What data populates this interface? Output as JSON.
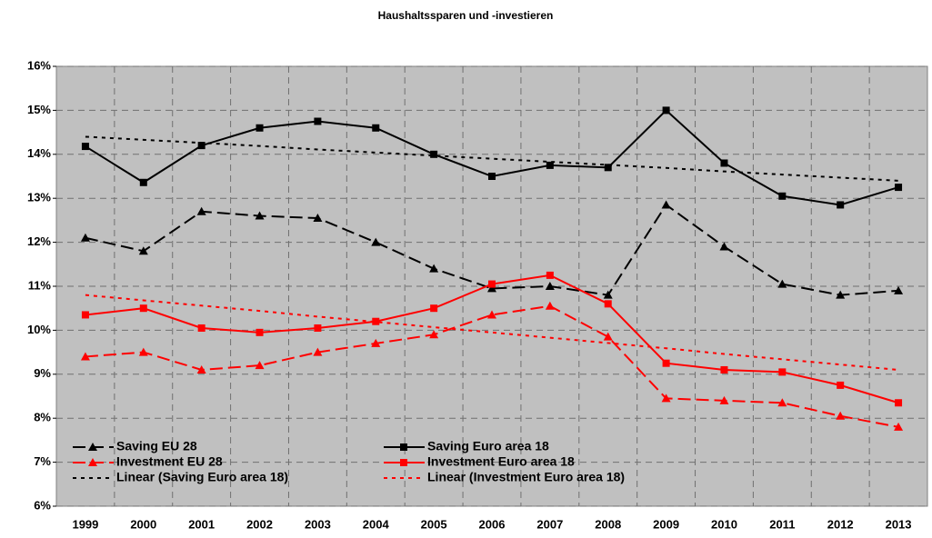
{
  "chart_data": {
    "type": "line",
    "title": "Haushaltssparen und -investieren",
    "categories": [
      "1999",
      "2000",
      "2001",
      "2002",
      "2003",
      "2004",
      "2005",
      "2006",
      "2007",
      "2008",
      "2009",
      "2010",
      "2011",
      "2012",
      "2013"
    ],
    "series": [
      {
        "name": "Saving EU 28",
        "color": "#000000",
        "dash": "dashed",
        "marker": "triangle",
        "values": [
          12.1,
          11.8,
          12.7,
          12.6,
          12.55,
          12.0,
          11.4,
          10.95,
          11.0,
          10.8,
          12.85,
          11.9,
          11.05,
          10.8,
          10.9
        ]
      },
      {
        "name": "Saving Euro area 18",
        "color": "#000000",
        "dash": "solid",
        "marker": "square",
        "values": [
          14.18,
          13.36,
          14.2,
          14.6,
          14.75,
          14.6,
          14.0,
          13.5,
          13.75,
          13.7,
          15.0,
          13.8,
          13.05,
          12.85,
          13.25
        ]
      },
      {
        "name": "Investment EU 28",
        "color": "#ff0000",
        "dash": "dashed",
        "marker": "triangle",
        "values": [
          9.4,
          9.5,
          9.1,
          9.2,
          9.5,
          9.7,
          9.9,
          10.35,
          10.55,
          9.85,
          8.45,
          8.4,
          8.35,
          8.05,
          7.8
        ]
      },
      {
        "name": "Investment Euro area 18",
        "color": "#ff0000",
        "dash": "solid",
        "marker": "square",
        "values": [
          10.35,
          10.5,
          10.05,
          9.95,
          10.05,
          10.2,
          10.5,
          11.05,
          11.25,
          10.6,
          9.25,
          9.1,
          9.05,
          8.75,
          8.35
        ]
      },
      {
        "name": "Linear (Saving Euro area 18)",
        "color": "#000000",
        "dash": "dotted",
        "marker": "none",
        "values": [
          14.4,
          14.33,
          14.26,
          14.19,
          14.11,
          14.04,
          13.97,
          13.9,
          13.83,
          13.76,
          13.69,
          13.61,
          13.54,
          13.47,
          13.4
        ]
      },
      {
        "name": "Linear (Investment Euro area 18)",
        "color": "#ff0000",
        "dash": "dotted",
        "marker": "none",
        "values": [
          10.8,
          10.68,
          10.56,
          10.44,
          10.31,
          10.19,
          10.07,
          9.95,
          9.83,
          9.71,
          9.59,
          9.46,
          9.34,
          9.22,
          9.1
        ]
      }
    ],
    "ylim": [
      6,
      16
    ],
    "yticks": [
      {
        "value": 6,
        "label": "6%"
      },
      {
        "value": 7,
        "label": "7%"
      },
      {
        "value": 8,
        "label": "8%"
      },
      {
        "value": 9,
        "label": "9%"
      },
      {
        "value": 10,
        "label": "10%"
      },
      {
        "value": 11,
        "label": "11%"
      },
      {
        "value": 12,
        "label": "12%"
      },
      {
        "value": 13,
        "label": "13%"
      },
      {
        "value": 14,
        "label": "14%"
      },
      {
        "value": 15,
        "label": "15%"
      },
      {
        "value": 16,
        "label": "16%"
      }
    ],
    "grid": true,
    "legend": "bottom-left",
    "plot_background": "#c0c0c0"
  }
}
